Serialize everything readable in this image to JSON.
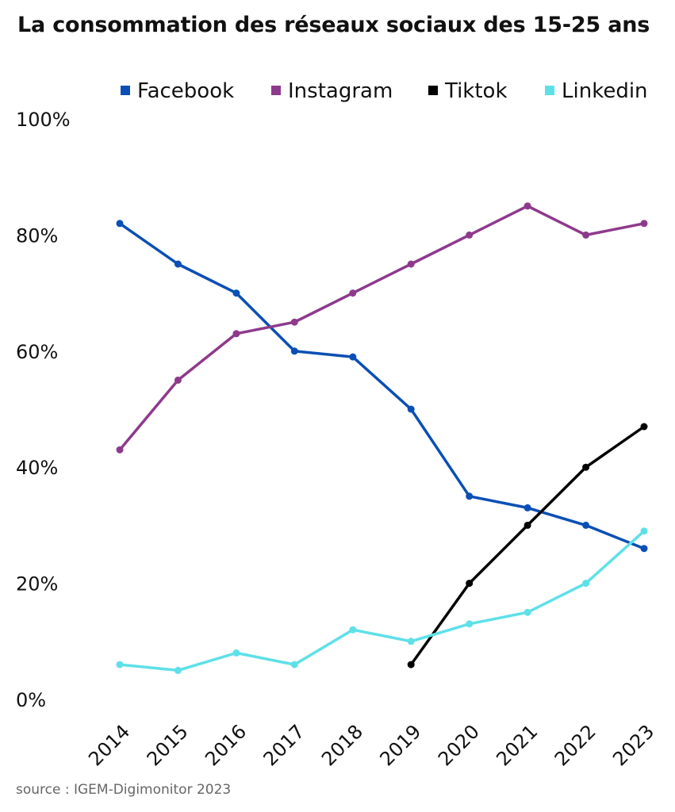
{
  "page": {
    "source": "source : IGEM-Digimonitor 2023"
  },
  "chart_data": {
    "type": "line",
    "title": "La consommation des réseaux sociaux des 15-25 ans",
    "xlabel": "",
    "ylabel": "",
    "x": [
      "2014",
      "2015",
      "2016",
      "2017",
      "2018",
      "2019",
      "2020",
      "2021",
      "2022",
      "2023"
    ],
    "ylim": [
      0,
      100
    ],
    "yticks": [
      0,
      20,
      40,
      60,
      80,
      100
    ],
    "ytick_labels": [
      "0%",
      "20%",
      "40%",
      "60%",
      "80%",
      "100%"
    ],
    "grid": false,
    "legend_position": "top",
    "series": [
      {
        "name": "Facebook",
        "color": "#0a4fb5",
        "values": [
          82,
          75,
          70,
          60,
          59,
          50,
          35,
          33,
          30,
          26
        ]
      },
      {
        "name": "Instagram",
        "color": "#8e3a8c",
        "values": [
          43,
          55,
          63,
          65,
          70,
          75,
          80,
          85,
          80,
          82
        ]
      },
      {
        "name": "Tiktok",
        "color": "#000000",
        "values": [
          null,
          null,
          null,
          null,
          null,
          6,
          20,
          30,
          40,
          47
        ]
      },
      {
        "name": "Linkedin",
        "color": "#5ee0e8",
        "values": [
          6,
          5,
          8,
          6,
          12,
          10,
          13,
          15,
          20,
          29
        ]
      }
    ]
  }
}
